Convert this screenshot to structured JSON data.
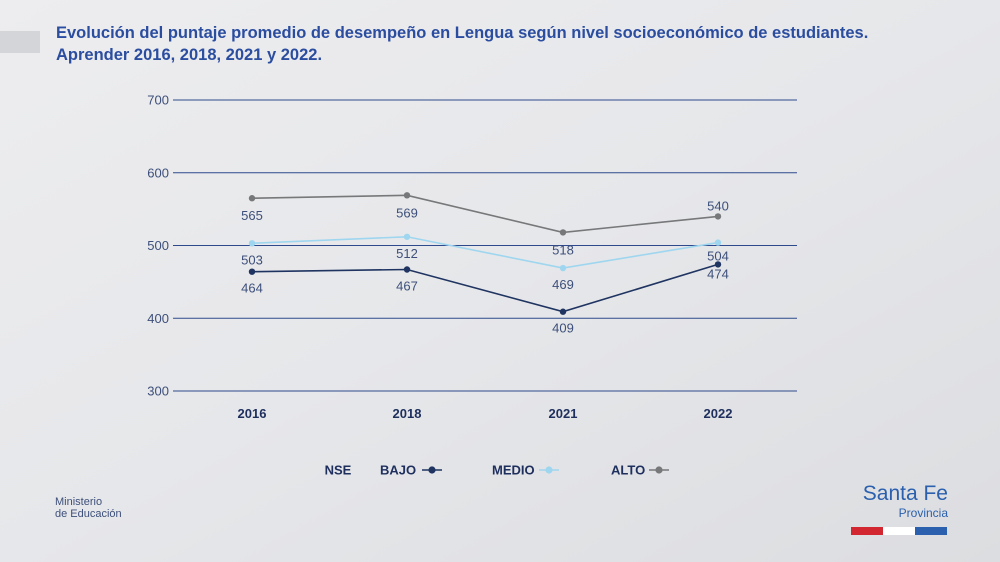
{
  "title": {
    "line1": "Evolución del puntaje promedio de desempeño en Lengua según nivel socioeconómico de estudiantes.",
    "line2": "Aprender 2016, 2018, 2021 y 2022."
  },
  "footer": {
    "ministry_line1": "Ministerio",
    "ministry_line2": "de Educación",
    "brand_name": "Santa Fe",
    "brand_sub": "Provincia"
  },
  "colors": {
    "title": "#2b4da0",
    "grid": "#2e4a8c",
    "bajo": "#1f3461",
    "medio": "#9fd6ef",
    "alto": "#77787a",
    "flag_red": "#d22630",
    "flag_white": "#ffffff",
    "flag_blue": "#2a60ad"
  },
  "chart_data": {
    "type": "line",
    "title": "Evolución del puntaje promedio de desempeño en Lengua según nivel socioeconómico de estudiantes. Aprender 2016, 2018, 2021 y 2022.",
    "xlabel": "",
    "ylabel": "",
    "categories": [
      "2016",
      "2018",
      "2021",
      "2022"
    ],
    "ylim": [
      300,
      700
    ],
    "yticks": [
      300,
      400,
      500,
      600,
      700
    ],
    "grid": true,
    "legend_title": "NSE",
    "legend_position": "bottom",
    "series": [
      {
        "name": "BAJO",
        "values": [
          464,
          467,
          409,
          474
        ],
        "color": "#1f3461",
        "label_side": "below"
      },
      {
        "name": "MEDIO",
        "values": [
          503,
          512,
          469,
          504
        ],
        "color": "#9fd6ef",
        "label_side": "below"
      },
      {
        "name": "ALTO",
        "values": [
          565,
          569,
          518,
          540
        ],
        "color": "#77787a",
        "label_side": "mixed"
      }
    ]
  }
}
